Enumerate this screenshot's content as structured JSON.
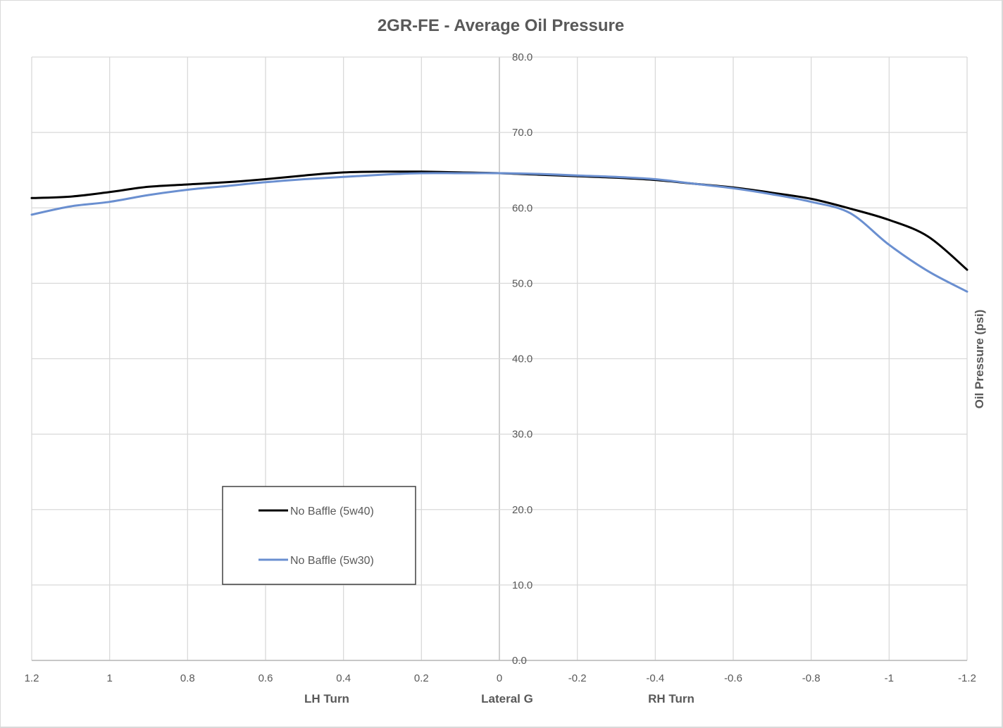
{
  "chart_data": {
    "type": "line",
    "title": "2GR-FE - Average Oil Pressure",
    "xlabel": "Lateral G",
    "ylabel": "Oil Pressure (psi)",
    "x_annotations": [
      "LH Turn",
      "Lateral G",
      "RH Turn"
    ],
    "xlim": [
      1.2,
      -1.2
    ],
    "ylim": [
      0,
      80
    ],
    "x_reversed": true,
    "grid": true,
    "x_ticks": [
      "1.2",
      "1",
      "0.8",
      "0.6",
      "0.4",
      "0.2",
      "0",
      "-0.2",
      "-0.4",
      "-0.6",
      "-0.8",
      "-1",
      "-1.2"
    ],
    "y_ticks": [
      "0.0",
      "10.0",
      "20.0",
      "30.0",
      "40.0",
      "50.0",
      "60.0",
      "70.0",
      "80.0"
    ],
    "legend_position": "lower-left",
    "series": [
      {
        "name": "No Baffle (5w40)",
        "color": "#000000",
        "x": [
          1.2,
          1.1,
          1.0,
          0.9,
          0.8,
          0.7,
          0.6,
          0.5,
          0.4,
          0.3,
          0.2,
          0.1,
          0,
          -0.1,
          -0.2,
          -0.3,
          -0.4,
          -0.5,
          -0.6,
          -0.7,
          -0.8,
          -0.9,
          -1.0,
          -1.1,
          -1.2
        ],
        "y": [
          61.3,
          61.5,
          62.1,
          62.8,
          63.1,
          63.4,
          63.8,
          64.3,
          64.7,
          64.8,
          64.8,
          64.7,
          64.6,
          64.4,
          64.2,
          64.0,
          63.7,
          63.2,
          62.7,
          62.0,
          61.2,
          59.9,
          58.4,
          56.2,
          51.8
        ]
      },
      {
        "name": "No Baffle (5w30)",
        "color": "#6a8fd0",
        "x": [
          1.2,
          1.1,
          1.0,
          0.9,
          0.8,
          0.7,
          0.6,
          0.5,
          0.4,
          0.3,
          0.2,
          0.1,
          0,
          -0.1,
          -0.2,
          -0.3,
          -0.4,
          -0.5,
          -0.6,
          -0.7,
          -0.8,
          -0.9,
          -1.0,
          -1.1,
          -1.2
        ],
        "y": [
          59.1,
          60.2,
          60.8,
          61.7,
          62.4,
          62.9,
          63.4,
          63.8,
          64.1,
          64.4,
          64.6,
          64.6,
          64.6,
          64.5,
          64.3,
          64.1,
          63.8,
          63.2,
          62.6,
          61.8,
          60.8,
          59.3,
          55.1,
          51.6,
          48.9
        ]
      }
    ]
  }
}
